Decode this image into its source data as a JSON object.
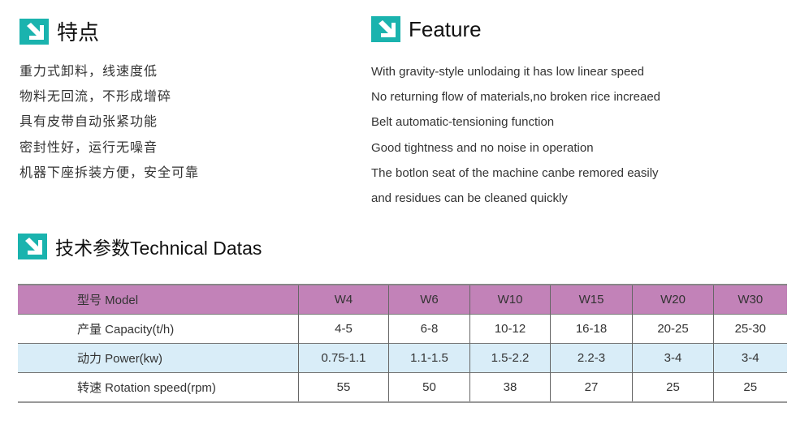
{
  "features_cn": {
    "title": "特点",
    "items": [
      "重力式卸料，线速度低",
      "物料无回流，不形成增碎",
      "具有皮带自动张紧功能",
      "密封性好，运行无噪音",
      "机器下座拆装方便，安全可靠"
    ]
  },
  "features_en": {
    "title": "Feature",
    "items": [
      "With gravity-style unlodaing  it has low linear speed",
      "No returning flow of materials,no broken rice increaed",
      "Belt automatic-tensioning function",
      "Good tightness and no noise in operation",
      "The botlon seat of the machine canbe remored easily",
      "and residues can be cleaned quickly"
    ]
  },
  "tech": {
    "title": "技术参数Technical Datas",
    "rows": [
      [
        "型号  Model",
        "W4",
        "W6",
        "W10",
        "W15",
        "W20",
        "W30"
      ],
      [
        "产量  Capacity(t/h)",
        "4-5",
        "6-8",
        "10-12",
        "16-18",
        "20-25",
        "25-30"
      ],
      [
        "动力  Power(kw)",
        "0.75-1.1",
        "1.1-1.5",
        "1.5-2.2",
        "2.2-3",
        "3-4",
        "3-4"
      ],
      [
        "转速  Rotation speed(rpm)",
        "55",
        "50",
        "38",
        "27",
        "25",
        "25"
      ]
    ]
  },
  "colors": {
    "accent": "#1ab3ae",
    "header_row": "#c282b8",
    "alt_row": "#d9edf8"
  },
  "icon": "arrow-down-right-icon"
}
